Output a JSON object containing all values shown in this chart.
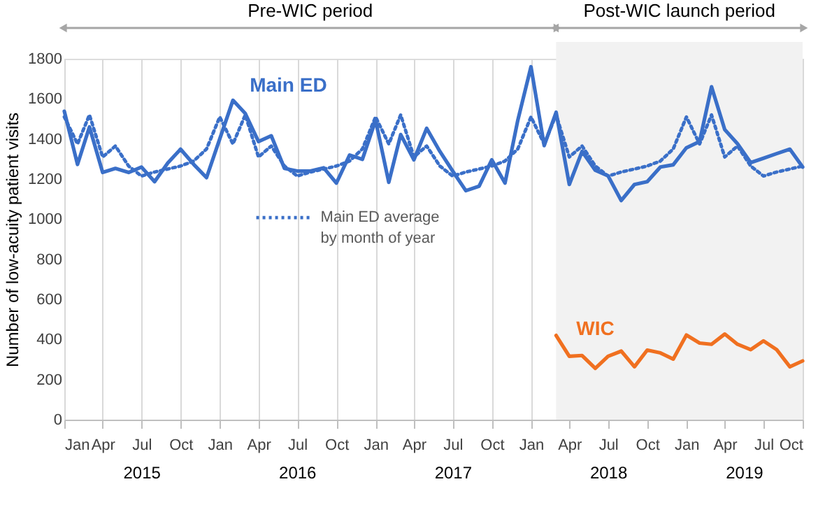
{
  "chart_data": {
    "type": "line",
    "ylabel": "Number of low-acuity patient visits",
    "x": [
      "2015-01",
      "2015-02",
      "2015-03",
      "2015-04",
      "2015-05",
      "2015-06",
      "2015-07",
      "2015-08",
      "2015-09",
      "2015-10",
      "2015-11",
      "2015-12",
      "2016-01",
      "2016-02",
      "2016-03",
      "2016-04",
      "2016-05",
      "2016-06",
      "2016-07",
      "2016-08",
      "2016-09",
      "2016-10",
      "2016-11",
      "2016-12",
      "2017-01",
      "2017-02",
      "2017-03",
      "2017-04",
      "2017-05",
      "2017-06",
      "2017-07",
      "2017-08",
      "2017-09",
      "2017-10",
      "2017-11",
      "2017-12",
      "2018-01",
      "2018-02",
      "2018-03",
      "2018-04",
      "2018-05",
      "2018-06",
      "2018-07",
      "2018-08",
      "2018-09",
      "2018-10",
      "2018-11",
      "2018-12",
      "2019-01",
      "2019-02",
      "2019-03",
      "2019-04",
      "2019-05",
      "2019-06",
      "2019-07",
      "2019-08",
      "2019-09",
      "2019-10"
    ],
    "series": [
      {
        "name": "Main ED",
        "color": "#3a6fc8",
        "line_style": "solid",
        "values": [
          1538,
          1273,
          1460,
          1233,
          1253,
          1233,
          1260,
          1187,
          1280,
          1349,
          1273,
          1207,
          1400,
          1593,
          1527,
          1387,
          1416,
          1253,
          1240,
          1240,
          1256,
          1180,
          1320,
          1298,
          1493,
          1184,
          1422,
          1296,
          1453,
          1338,
          1240,
          1142,
          1164,
          1296,
          1180,
          1493,
          1760,
          1367,
          1533,
          1173,
          1338,
          1244,
          1216,
          1093,
          1173,
          1187,
          1260,
          1271,
          1356,
          1387,
          1660,
          1447,
          1376,
          1282,
          1304,
          1327,
          1349,
          1260
        ]
      },
      {
        "name": "Main ED average by month of year",
        "color": "#3a6fc8",
        "line_style": "dotted",
        "values": [
          1510,
          1375,
          1520,
          1310,
          1365,
          1265,
          1215,
          1235,
          1250,
          1265,
          1290,
          1350,
          1510,
          1375,
          1520,
          1310,
          1365,
          1265,
          1215,
          1235,
          1250,
          1265,
          1290,
          1350,
          1510,
          1375,
          1520,
          1310,
          1365,
          1265,
          1215,
          1235,
          1250,
          1265,
          1290,
          1350,
          1510,
          1375,
          1520,
          1310,
          1365,
          1265,
          1215,
          1235,
          1250,
          1265,
          1290,
          1350,
          1510,
          1375,
          1520,
          1310,
          1365,
          1265,
          1215,
          1235,
          1250,
          1265
        ]
      },
      {
        "name": "WIC",
        "color": "#f07020",
        "line_style": "solid",
        "x": [
          "2018-03",
          "2018-04",
          "2018-05",
          "2018-06",
          "2018-07",
          "2018-08",
          "2018-09",
          "2018-10",
          "2018-11",
          "2018-12",
          "2019-01",
          "2019-02",
          "2019-03",
          "2019-04",
          "2019-05",
          "2019-06",
          "2019-07",
          "2019-08",
          "2019-09",
          "2019-10"
        ],
        "values": [
          420,
          316,
          320,
          256,
          316,
          342,
          264,
          347,
          333,
          302,
          422,
          382,
          376,
          427,
          376,
          349,
          393,
          349,
          264,
          293
        ]
      }
    ],
    "xlim": [
      "2015-01",
      "2019-10"
    ],
    "xticks": [
      {
        "value": "2015-01",
        "label": "Jan"
      },
      {
        "value": "2015-04",
        "label": "Apr"
      },
      {
        "value": "2015-07",
        "label": "Jul"
      },
      {
        "value": "2015-10",
        "label": "Oct"
      },
      {
        "value": "2016-01",
        "label": "Jan"
      },
      {
        "value": "2016-04",
        "label": "Apr"
      },
      {
        "value": "2016-07",
        "label": "Jul"
      },
      {
        "value": "2016-10",
        "label": "Oct"
      },
      {
        "value": "2017-01",
        "label": "Jan"
      },
      {
        "value": "2017-04",
        "label": "Apr"
      },
      {
        "value": "2017-07",
        "label": "Jul"
      },
      {
        "value": "2017-10",
        "label": "Oct"
      },
      {
        "value": "2018-01",
        "label": "Jan"
      },
      {
        "value": "2018-04",
        "label": "Apr"
      },
      {
        "value": "2018-07",
        "label": "Jul"
      },
      {
        "value": "2018-10",
        "label": "Oct"
      },
      {
        "value": "2019-01",
        "label": "Jan"
      },
      {
        "value": "2019-04",
        "label": "Apr"
      },
      {
        "value": "2019-07",
        "label": "Jul"
      },
      {
        "value": "2019-10",
        "label": "Oct"
      }
    ],
    "ylim": [
      0,
      1800
    ],
    "yticks": [
      0,
      200,
      400,
      600,
      800,
      1000,
      1200,
      1400,
      1600,
      1800
    ],
    "grid": "x",
    "bands": [
      {
        "axis": "x",
        "from": "2018-03",
        "to": "2019-10",
        "label": "Post-WIC launch period",
        "color": "#f2f2f2"
      }
    ],
    "annotations": [
      "Pre-WIC period",
      "2015",
      "2016",
      "2017",
      "2018",
      "2019"
    ]
  }
}
